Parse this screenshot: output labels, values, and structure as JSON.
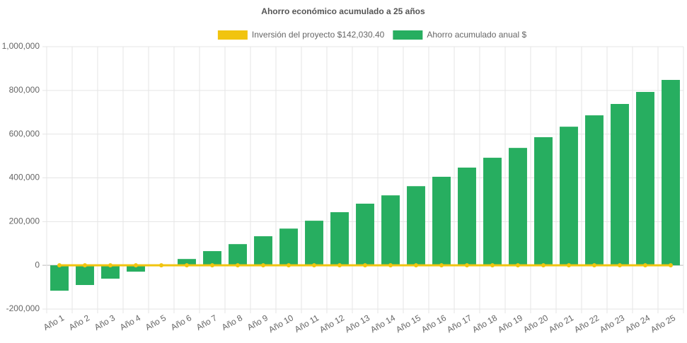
{
  "chart_data": {
    "type": "bar",
    "title": "Ahorro económico acumulado a 25 años",
    "categories": [
      "Año 1",
      "Año 2",
      "Año 3",
      "Año 4",
      "Año 5",
      "Año 6",
      "Año 7",
      "Año 8",
      "Año 9",
      "Año 10",
      "Año 11",
      "Año 12",
      "Año 13",
      "Año 14",
      "Año 15",
      "Año 16",
      "Año 17",
      "Año 18",
      "Año 19",
      "Año 20",
      "Año 21",
      "Año 22",
      "Año 23",
      "Año 24",
      "Año 25"
    ],
    "series": [
      {
        "name": "Inversión del proyecto $142,030.40",
        "type": "line",
        "color": "#f1c40f",
        "values": [
          0,
          0,
          0,
          0,
          0,
          0,
          0,
          0,
          0,
          0,
          0,
          0,
          0,
          0,
          0,
          0,
          0,
          0,
          0,
          0,
          0,
          0,
          0,
          0,
          0
        ]
      },
      {
        "name": "Ahorro acumulado anual $",
        "type": "bar",
        "color": "#27ae60",
        "values": [
          -116000,
          -90000,
          -61000,
          -29000,
          0,
          29000,
          65000,
          97000,
          133000,
          168000,
          204000,
          243000,
          282000,
          320000,
          362000,
          405000,
          447000,
          492000,
          537000,
          586000,
          634000,
          686000,
          738000,
          793000,
          848000
        ]
      }
    ],
    "ylim": [
      -200000,
      1000000
    ],
    "yticks": [
      {
        "value": -200000,
        "label": "-200,000"
      },
      0,
      {
        "value": 200000,
        "label": "200,000"
      },
      {
        "value": 400000,
        "label": "400,000"
      },
      {
        "value": 600000,
        "label": "600,000"
      },
      {
        "value": 800000,
        "label": "800,000"
      },
      {
        "value": 1000000,
        "label": "1,000,000"
      }
    ],
    "grid": true
  }
}
